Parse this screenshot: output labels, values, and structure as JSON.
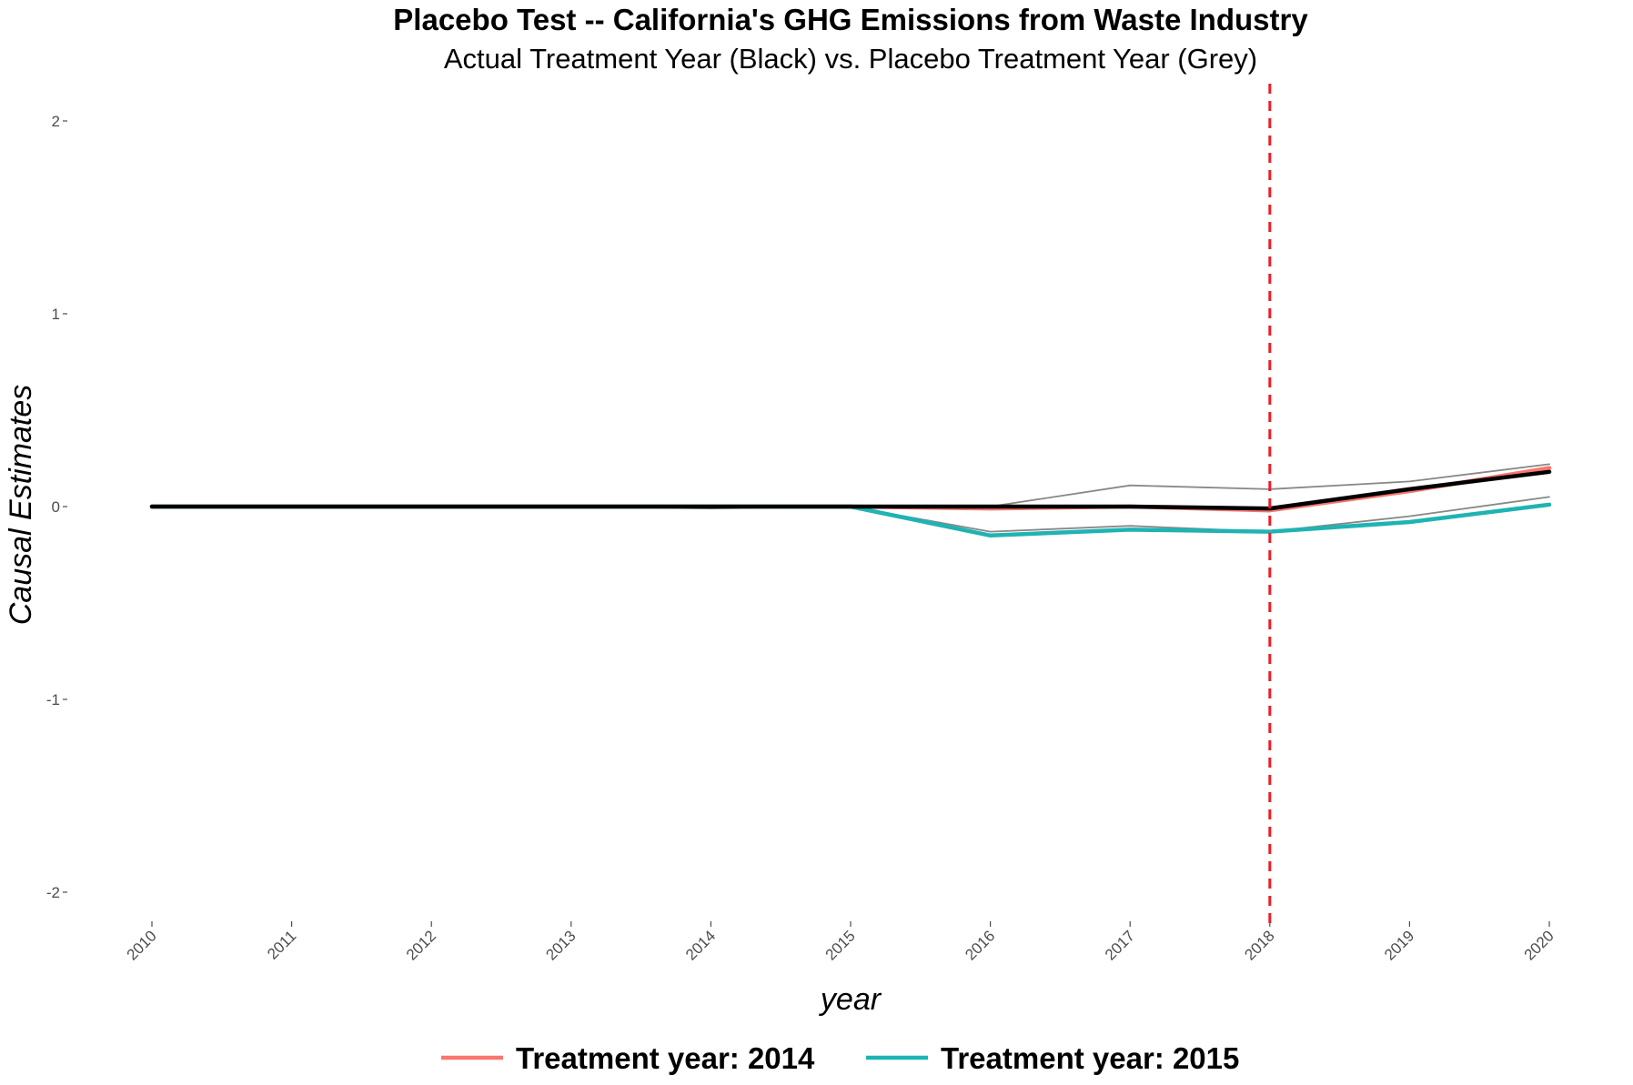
{
  "chart_data": {
    "type": "line",
    "title": "Placebo Test -- California's GHG Emissions from Waste Industry",
    "subtitle": "Actual Treatment Year (Black) vs. Placebo Treatment Year (Grey)",
    "xlabel": "year",
    "ylabel": "Causal Estimates",
    "x": [
      2010,
      2011,
      2012,
      2013,
      2014,
      2015,
      2016,
      2017,
      2018,
      2019,
      2020
    ],
    "x_tick_labels": [
      "2010",
      "2011",
      "2012",
      "2013",
      "2014",
      "2015",
      "2016",
      "2017",
      "2018",
      "2019",
      "2020"
    ],
    "y_ticks": [
      2,
      1,
      0,
      -1,
      -2
    ],
    "y_tick_labels": [
      "2",
      "1",
      "0",
      "-1",
      "-2"
    ],
    "xlim": [
      2010,
      2020
    ],
    "ylim": [
      -2.2,
      2.2
    ],
    "grid": false,
    "legend_position": "bottom",
    "vline": {
      "x": 2018,
      "color": "#ee1c25",
      "style": "dashed"
    },
    "series": [
      {
        "color": "#888888",
        "width": "thin",
        "values": [
          0,
          0,
          0,
          0,
          -0.01,
          0,
          -0.13,
          -0.1,
          -0.13,
          -0.05,
          0.05
        ]
      },
      {
        "color": "#888888",
        "width": "thin",
        "values": [
          0,
          0,
          0,
          0,
          0,
          0,
          0,
          0.11,
          0.09,
          0.13,
          0.22
        ]
      },
      {
        "name": "Treatment year: 2014",
        "color": "#f8766d",
        "width": "thick",
        "values": [
          0,
          0,
          0,
          0,
          0,
          0,
          -0.01,
          0,
          -0.02,
          0.08,
          0.2
        ]
      },
      {
        "name": "Treatment year: 2015",
        "color": "#1fb3b3",
        "width": "thick",
        "values": [
          0,
          0,
          0,
          0,
          0,
          0,
          -0.15,
          -0.12,
          -0.13,
          -0.08,
          0.01
        ]
      },
      {
        "color": "#000000",
        "width": "thick",
        "values": [
          0,
          0,
          0,
          0,
          0,
          0,
          0,
          0,
          -0.01,
          0.09,
          0.18
        ]
      }
    ]
  }
}
